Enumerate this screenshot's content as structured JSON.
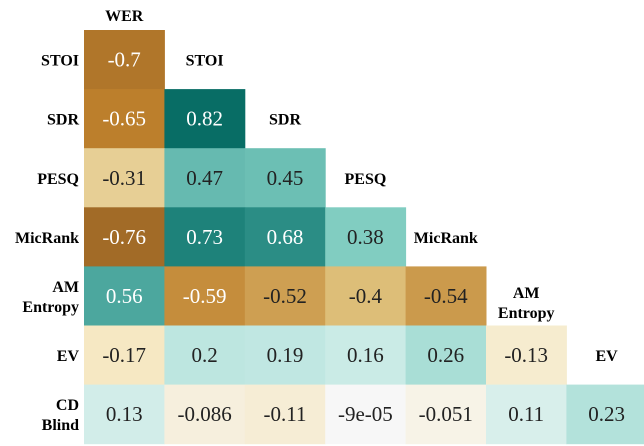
{
  "chart_data": {
    "type": "heatmap",
    "title": "",
    "row_labels": [
      "STOI",
      "SDR",
      "PESQ",
      "MicRank",
      "AM Entropy",
      "EV",
      "CD Blind"
    ],
    "col_labels": [
      "WER",
      "STOI",
      "SDR",
      "PESQ",
      "MicRank",
      "AM Entropy",
      "EV"
    ],
    "value_labels": [
      [
        "-0.7"
      ],
      [
        "-0.65",
        "0.82"
      ],
      [
        "-0.31",
        "0.47",
        "0.45"
      ],
      [
        "-0.76",
        "0.73",
        "0.68",
        "0.38"
      ],
      [
        "0.56",
        "-0.59",
        "-0.52",
        "-0.4",
        "-0.54"
      ],
      [
        "-0.17",
        "0.2",
        "0.19",
        "0.16",
        "0.26",
        "-0.13"
      ],
      [
        "0.13",
        "-0.086",
        "-0.11",
        "-9e-05",
        "-0.051",
        "0.11",
        "0.23"
      ]
    ],
    "values": [
      [
        -0.7
      ],
      [
        -0.65,
        0.82
      ],
      [
        -0.31,
        0.47,
        0.45
      ],
      [
        -0.76,
        0.73,
        0.68,
        0.38
      ],
      [
        0.56,
        -0.59,
        -0.52,
        -0.4,
        -0.54
      ],
      [
        -0.17,
        0.2,
        0.19,
        0.16,
        0.26,
        -0.13
      ],
      [
        0.13,
        -0.086,
        -0.11,
        -9e-05,
        -0.051,
        0.11,
        0.23
      ]
    ],
    "colormap": {
      "negative": "#8c5a22",
      "neutral": "#f7f7f7",
      "positive": "#01665e"
    },
    "value_range": [
      -0.85,
      0.85
    ],
    "grid": false,
    "legend": "none"
  }
}
